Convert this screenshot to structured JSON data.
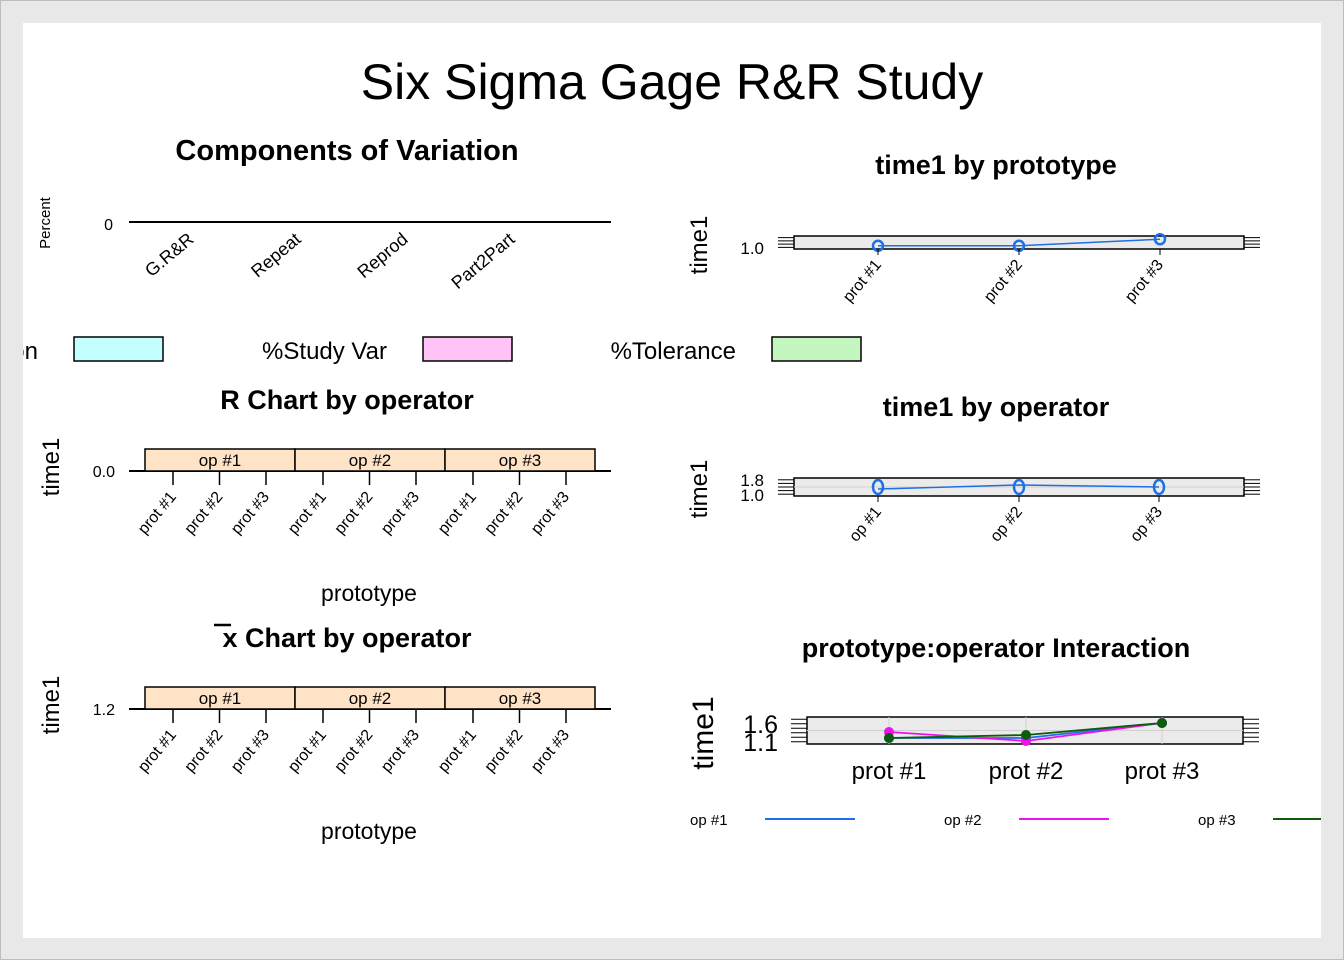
{
  "title": "Six Sigma Gage R&R Study",
  "colors": {
    "panel_bg": "#ebebeb",
    "grid": "#d0d0d0",
    "strip": "#ffe3c6",
    "blue": "#1f6fe6",
    "magenta": "#ee10ee",
    "darkgreen": "#0b5c0b",
    "legend_cyan": "#c4ffff",
    "legend_pink": "#ffc4f5",
    "legend_green": "#c4f7c0"
  },
  "legend_top": {
    "items": [
      {
        "label": "%Contribution",
        "color": "#c4ffff"
      },
      {
        "label": "%Study Var",
        "color": "#ffc4f5"
      },
      {
        "label": "%Tolerance",
        "color": "#c4f7c0"
      }
    ]
  },
  "legend_bottom": {
    "items": [
      {
        "label": "op #1",
        "color": "#1f6fe6"
      },
      {
        "label": "op #2",
        "color": "#ee10ee"
      },
      {
        "label": "op #3",
        "color": "#0b5c0b"
      }
    ]
  },
  "chart_data": [
    {
      "id": "components",
      "type": "bar",
      "title": "Components of Variation",
      "ylabel": "Percent",
      "yticks": [
        "0"
      ],
      "categories": [
        "G.R&R",
        "Repeat",
        "Reprod",
        "Part2Part"
      ],
      "series": [
        {
          "name": "%Contribution",
          "values": [
            0,
            0,
            0,
            0
          ]
        },
        {
          "name": "%Study Var",
          "values": [
            0,
            0,
            0,
            0
          ]
        },
        {
          "name": "%Tolerance",
          "values": [
            0,
            0,
            0,
            0
          ]
        }
      ]
    },
    {
      "id": "by_prototype",
      "type": "line",
      "title": "time1 by prototype",
      "ylabel": "time1",
      "yticks": [
        "1.0"
      ],
      "categories": [
        "prot #1",
        "prot #2",
        "prot #3"
      ],
      "values": [
        1.0,
        1.0,
        1.3
      ]
    },
    {
      "id": "r_chart",
      "type": "line",
      "title": "R Chart by operator",
      "ylabel": "time1",
      "xlabel": "prototype",
      "yticks": [
        "0.0"
      ],
      "strips": [
        "op #1",
        "op #2",
        "op #3"
      ],
      "categories": [
        "prot #1",
        "prot #2",
        "prot #3"
      ]
    },
    {
      "id": "by_operator",
      "type": "line",
      "title": "time1 by operator",
      "ylabel": "time1",
      "yticks": [
        "1.8",
        "1.0"
      ],
      "categories": [
        "op #1",
        "op #2",
        "op #3"
      ],
      "values": [
        1.1,
        1.2,
        1.15
      ]
    },
    {
      "id": "xbar_chart",
      "type": "line",
      "title": "x Chart by operator",
      "ylabel": "time1",
      "xlabel": "prototype",
      "yticks": [
        "1.2"
      ],
      "strips": [
        "op #1",
        "op #2",
        "op #3"
      ],
      "categories": [
        "prot #1",
        "prot #2",
        "prot #3"
      ]
    },
    {
      "id": "interaction",
      "type": "line",
      "title": "prototype:operator Interaction",
      "ylabel": "time1",
      "yticks": [
        "1.6",
        "1.1"
      ],
      "categories": [
        "prot #1",
        "prot #2",
        "prot #3"
      ],
      "series": [
        {
          "name": "op #1",
          "values": [
            1.1,
            1.1,
            1.6
          ]
        },
        {
          "name": "op #2",
          "values": [
            1.3,
            1.0,
            1.6
          ]
        },
        {
          "name": "op #3",
          "values": [
            1.1,
            1.2,
            1.6
          ]
        }
      ]
    }
  ]
}
